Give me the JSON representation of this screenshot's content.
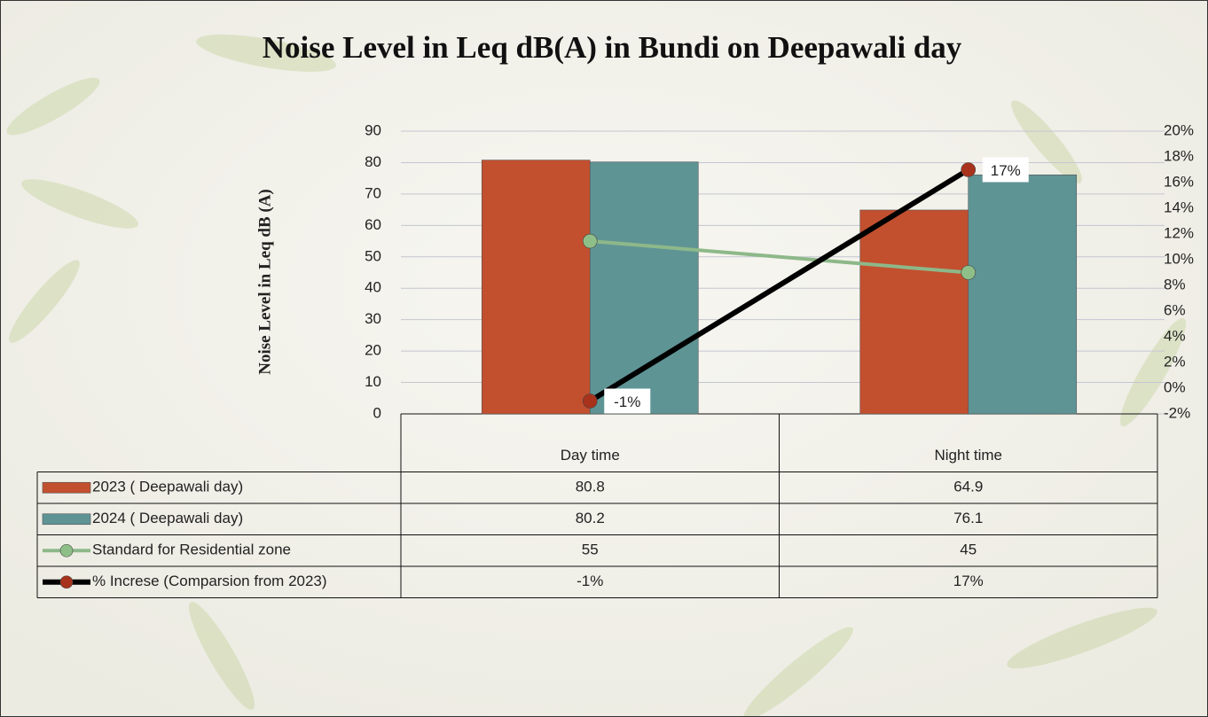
{
  "chart_data": {
    "type": "bar",
    "title": "Noise Level in Leq dB(A) in Bundi on Deepawali day",
    "y_label": "Noise Level in Leq dB (A)",
    "categories": [
      "Day time",
      "Night time"
    ],
    "series": [
      {
        "name": "2023 ( Deepawali day)",
        "type": "bar",
        "color": "#c2502f",
        "values": [
          80.8,
          64.9
        ]
      },
      {
        "name": "2024 ( Deepawali day)",
        "type": "bar",
        "color": "#5f9495",
        "values": [
          80.2,
          76.1
        ]
      },
      {
        "name": "Standard for Residential zone",
        "type": "line",
        "color": "#8db889",
        "marker_color": "#8fbf88",
        "values": [
          55,
          45
        ]
      },
      {
        "name": "% Increse (Comparsion from 2023)",
        "type": "line",
        "axis": "y2",
        "color": "#000000",
        "marker_color": "#a8321c",
        "values": [
          -1,
          17
        ],
        "value_labels": [
          "-1%",
          "17%"
        ]
      }
    ],
    "ylim": [
      0,
      90
    ],
    "yticks": [
      0,
      10,
      20,
      30,
      40,
      50,
      60,
      70,
      80,
      90
    ],
    "y2lim": [
      -2,
      20
    ],
    "y2ticks": [
      {
        "value": -2,
        "label": "-2%"
      },
      {
        "value": 0,
        "label": "0%"
      },
      {
        "value": 2,
        "label": "2%"
      },
      {
        "value": 4,
        "label": "4%"
      },
      {
        "value": 6,
        "label": "6%"
      },
      {
        "value": 8,
        "label": "8%"
      },
      {
        "value": 10,
        "label": "10%"
      },
      {
        "value": 12,
        "label": "12%"
      },
      {
        "value": 14,
        "label": "14%"
      },
      {
        "value": 16,
        "label": "16%"
      },
      {
        "value": 18,
        "label": "18%"
      },
      {
        "value": 20,
        "label": "20%"
      }
    ],
    "grid": true
  }
}
